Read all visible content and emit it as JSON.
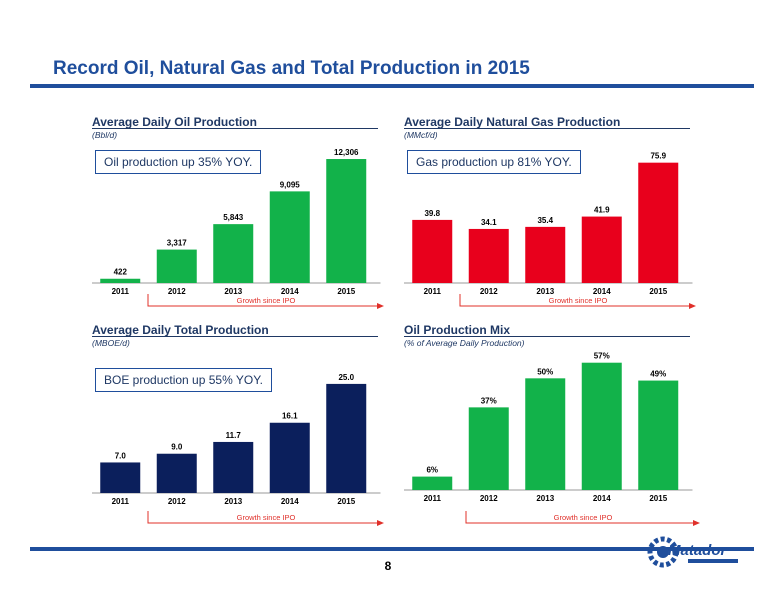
{
  "page": {
    "title": "Record Oil, Natural Gas and Total Production in 2015",
    "page_number": "8",
    "growth_label": "Growth since IPO",
    "logo_text": "Matador"
  },
  "colors": {
    "green": "#12b24a",
    "red": "#e8001c",
    "navy": "#0b1f5c",
    "blue": "#1f4e9c",
    "arrow": "#e0302a"
  },
  "chart_data": [
    {
      "type": "bar",
      "title": "Average Daily Oil Production",
      "unit_label": "(Bbl/d)",
      "callout": "Oil production up 35% YOY.",
      "categories": [
        "2011",
        "2012",
        "2013",
        "2014",
        "2015"
      ],
      "values": [
        422,
        3317,
        5843,
        9095,
        12306
      ],
      "value_labels": [
        "422",
        "3,317",
        "5,843",
        "9,095",
        "12,306"
      ],
      "ylim": [
        0,
        13500
      ],
      "color": "#12b24a",
      "growth_label": "Growth since IPO"
    },
    {
      "type": "bar",
      "title": "Average Daily Natural Gas Production",
      "unit_label": "(MMcf/d)",
      "callout": "Gas production up 81% YOY.",
      "categories": [
        "2011",
        "2012",
        "2013",
        "2014",
        "2015"
      ],
      "values": [
        39.8,
        34.1,
        35.4,
        41.9,
        75.9
      ],
      "value_labels": [
        "39.8",
        "34.1",
        "35.4",
        "41.9",
        "75.9"
      ],
      "ylim": [
        0,
        82
      ],
      "color": "#e8001c",
      "growth_label": "Growth since IPO"
    },
    {
      "type": "bar",
      "title": "Average Daily Total Production",
      "unit_label": "(MBOE/d)",
      "callout": "BOE production up 55% YOY.",
      "categories": [
        "2011",
        "2012",
        "2013",
        "2014",
        "2015"
      ],
      "values": [
        7.0,
        9.0,
        11.7,
        16.1,
        25.0
      ],
      "value_labels": [
        "7.0",
        "9.0",
        "11.7",
        "16.1",
        "25.0"
      ],
      "ylim": [
        0,
        27.5
      ],
      "color": "#0b1f5c",
      "growth_label": "Growth since IPO"
    },
    {
      "type": "bar",
      "title": "Oil Production Mix",
      "unit_label": "(% of Average Daily Production)",
      "categories": [
        "2011",
        "2012",
        "2013",
        "2014",
        "2015"
      ],
      "values": [
        6,
        37,
        50,
        57,
        49
      ],
      "value_labels": [
        "6%",
        "37%",
        "50%",
        "57%",
        "49%"
      ],
      "ylim": [
        0,
        60
      ],
      "color": "#12b24a",
      "growth_label": "Growth since IPO"
    }
  ]
}
